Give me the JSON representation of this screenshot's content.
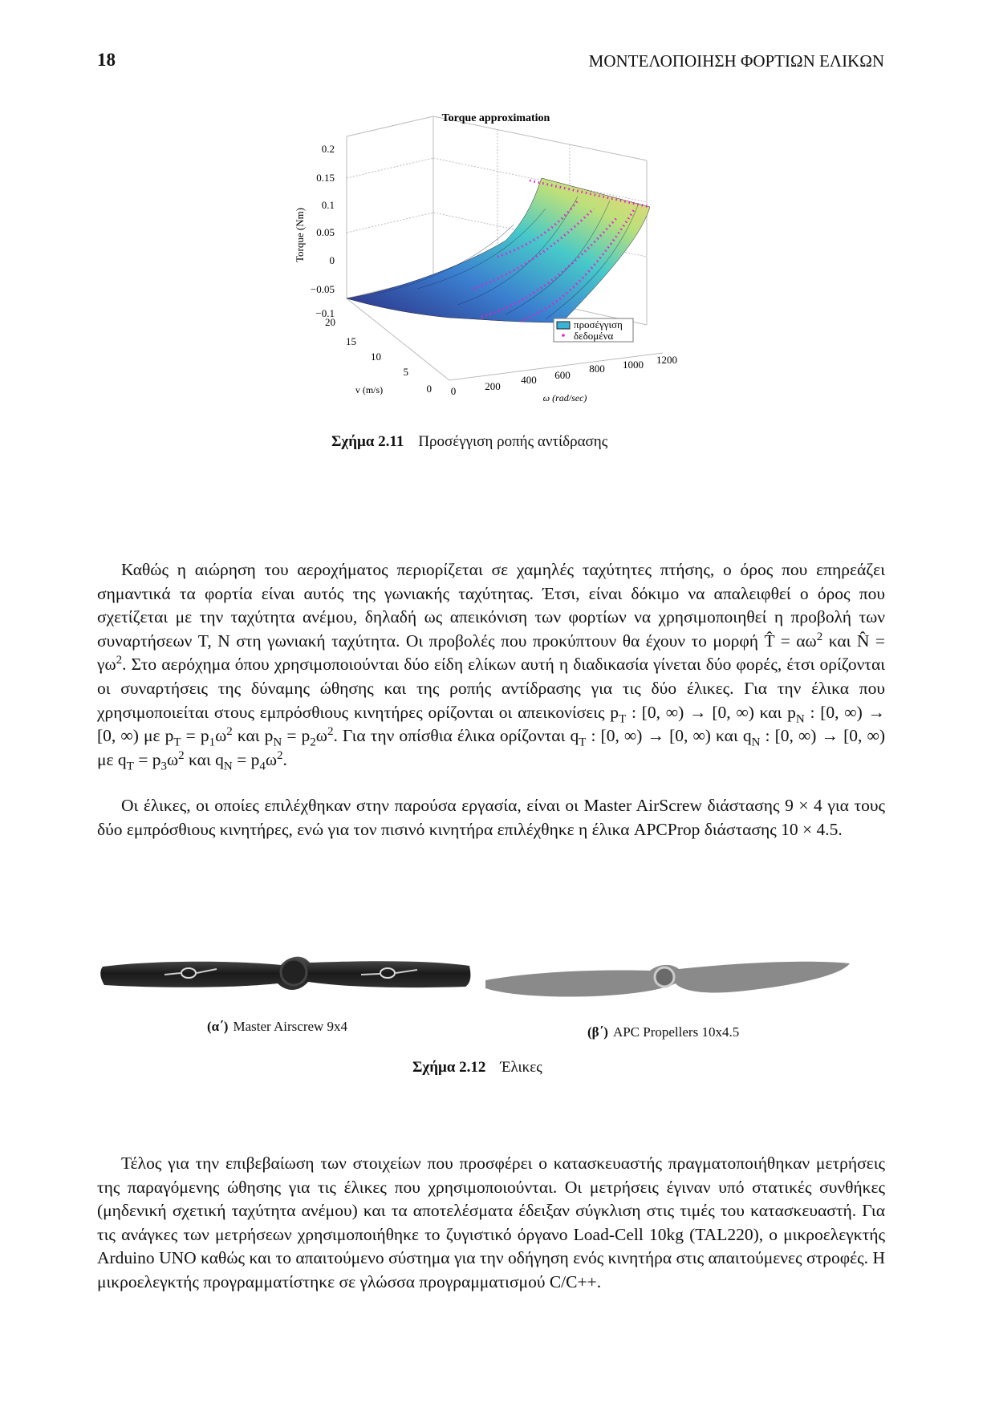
{
  "header": {
    "page_number": "18",
    "running_title": "ΜΟΝΤΕΛΟΠΟΙΗΣΗ ΦΟΡΤΙΩΝ ΕΛΙΚΩΝ"
  },
  "figure_1": {
    "plot_title": "Torque approximation",
    "z_axis_label": "Torque (Nm)",
    "z_ticks": [
      "0.2",
      "0.15",
      "0.1",
      "0.05",
      "0",
      "−0.05",
      "−0.1"
    ],
    "v_axis_label": "v (m/s)",
    "v_ticks": [
      "20",
      "15",
      "10",
      "5",
      "0"
    ],
    "w_axis_label": "ω (rad/sec)",
    "w_ticks": [
      "0",
      "200",
      "400",
      "600",
      "800",
      "1000",
      "1200"
    ],
    "legend": [
      "προσέγγιση",
      "δεδομένα"
    ],
    "caption_label": "Σχήμα 2.11",
    "caption_text": "Προσέγγιση ροπής αντίδρασης"
  },
  "paragraphs": [
    [
      "Καθώς η αιώρηση του αεροχήματος περιορίζεται σε χαμηλές ταχύτητες πτήσης, ο όρος που επηρεάζει σημαντικά τα φορτία είναι αυτός της γωνιακής ταχύτητας. Έτσι, είναι δόκιμο να απαλειφθεί ο όρος που σχετίζεται με την ταχύτητα ανέμου, δηλαδή ως απεικόνιση των φορτίων να χρησιμοποιηθεί η προβολή των συναρτήσεων T, N στη γωνιακή ταχύτητα. Οι προβολές που προκύπτουν θα έχουν το μορφή T̂ = αω",
      {
        "sup": "2"
      },
      " και N̂ = γω",
      {
        "sup": "2"
      },
      ". Στο αερόχημα όπου χρησιμοποιούνται δύο είδη ελίκων αυτή η διαδικασία γίνεται δύο φορές, έτσι ορίζονται οι συναρτήσεις της δύναμης ώθησης και της ροπής αντίδρασης για τις δύο έλικες. Για την έλικα που χρησιμοποιείται στους εμπρόσθιους κινητήρες ορίζονται οι απεικονίσεις p",
      {
        "sub": "T"
      },
      " : [0, ∞) → [0, ∞) και p",
      {
        "sub": "N"
      },
      " : [0, ∞) → [0, ∞) με p",
      {
        "sub": "T"
      },
      " = p",
      {
        "sub": "1"
      },
      "ω",
      {
        "sup": "2"
      },
      " και p",
      {
        "sub": "N"
      },
      " = p",
      {
        "sub": "2"
      },
      "ω",
      {
        "sup": "2"
      },
      ". Για την οπίσθια έλικα ορίζονται q",
      {
        "sub": "T"
      },
      " : [0, ∞) → [0, ∞) και q",
      {
        "sub": "N"
      },
      " : [0, ∞) → [0, ∞) με q",
      {
        "sub": "T"
      },
      " = p",
      {
        "sub": "3"
      },
      "ω",
      {
        "sup": "2"
      },
      " και q",
      {
        "sub": "N"
      },
      " = p",
      {
        "sub": "4"
      },
      "ω",
      {
        "sup": "2"
      },
      "."
    ],
    [
      "Οι έλικες, οι οποίες επιλέχθηκαν στην παρούσα εργασία, είναι οι Master AirScrew διάστασης 9 × 4 για τους δύο εμπρόσθιους κινητήρες, ενώ για τον πισινό κινητήρα επιλέχθηκε η έλικα APCProp διάστασης 10 × 4.5."
    ],
    [
      "Τέλος για την επιβεβαίωση των στοιχείων που προσφέρει ο κατασκευαστής πραγματοποιήθηκαν μετρήσεις της παραγόμενης ώθησης για τις έλικες που χρησιμοποιούνται. Οι μετρήσεις έγιναν υπό στατικές συνθήκες (μηδενική σχετική ταχύτητα ανέμου) και τα αποτελέσματα έδειξαν σύγκλιση στις τιμές του κατασκευαστή. Για τις ανάγκες των μετρήσεων χρησιμοποιήθηκε το ζυγιστικό όργανο Load-Cell 10kg (TAL220), ο μικροελεγκτής Arduino UNO καθώς και το απαιτούμενο σύστημα για την οδήγηση ενός κινητήρα στις απαιτούμενες στροφές. Η μικροελεγκτής προγραμματίστηκε σε γλώσσα προγραμματισμού C/C++."
    ]
  ],
  "figure_2": {
    "subfigures": [
      {
        "label": "(α΄)",
        "text": "Master Airscrew 9x4"
      },
      {
        "label": "(β΄)",
        "text": "APC Propellers 10x4.5"
      }
    ],
    "caption_label": "Σχήμα 2.12",
    "caption_text": "Έλικες"
  }
}
